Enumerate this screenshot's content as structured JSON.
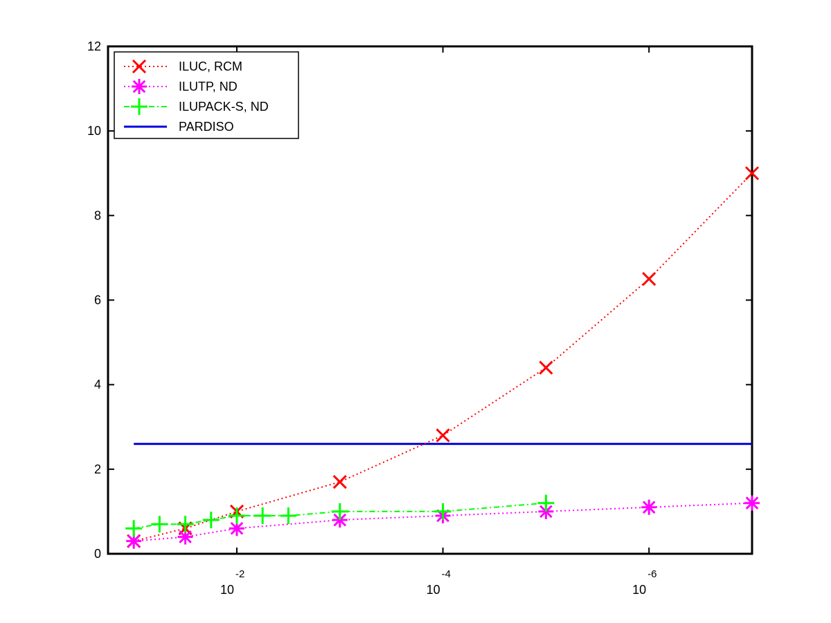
{
  "chart_data": {
    "type": "line",
    "title": "",
    "xlabel": "",
    "ylabel": "",
    "x_scale": "log-reversed",
    "xlim": [
      0.1778,
      1e-07
    ],
    "ylim": [
      0,
      12
    ],
    "grid": false,
    "legend_position": "top-left",
    "x_ticks": [
      {
        "value": 0.01,
        "base": "10",
        "exp": "-2"
      },
      {
        "value": 0.0001,
        "base": "10",
        "exp": "-4"
      },
      {
        "value": 1e-06,
        "base": "10",
        "exp": "-6"
      }
    ],
    "y_ticks": [
      {
        "value": 0,
        "label": "0"
      },
      {
        "value": 2,
        "label": "2"
      },
      {
        "value": 4,
        "label": "4"
      },
      {
        "value": 6,
        "label": "6"
      },
      {
        "value": 8,
        "label": "8"
      },
      {
        "value": 10,
        "label": "10"
      },
      {
        "value": 12,
        "label": "12"
      }
    ],
    "series": [
      {
        "name": "ILUC, RCM",
        "color": "#ff0000",
        "marker": "x",
        "line": "dotted",
        "points": [
          {
            "x": 0.1,
            "y": 0.3
          },
          {
            "x": 0.1,
            "y": 0.3
          },
          {
            "x": 0.1,
            "y": 0.3
          },
          {
            "x": 0.1,
            "y": 0.3
          },
          {
            "x": 0.1,
            "y": 0.3
          },
          {
            "x": 0.1,
            "y": 0.3
          },
          {
            "x": 0.1,
            "y": 0.3
          },
          {
            "x": 0.1,
            "y": 0.3
          },
          {
            "x": 0.1,
            "y": 0.3
          },
          {
            "x": 0.1,
            "y": 0.3
          },
          {
            "x": 0.1,
            "y": 0.3
          },
          {
            "x": 0.1,
            "y": 0.3
          },
          {
            "x": 0.1,
            "y": 0.3
          },
          {
            "x": 0.1,
            "y": 0.3
          },
          {
            "x": 0.1,
            "y": 0.3
          },
          {
            "x": 0.1,
            "y": 0.3
          },
          {
            "x": 0.1,
            "y": 0.3
          },
          {
            "x": 0.1,
            "y": 0.3
          },
          {
            "x": 0.1,
            "y": 0.3
          },
          {
            "x": 0.1,
            "y": 0.3
          }
        ]
      }
    ]
  }
}
